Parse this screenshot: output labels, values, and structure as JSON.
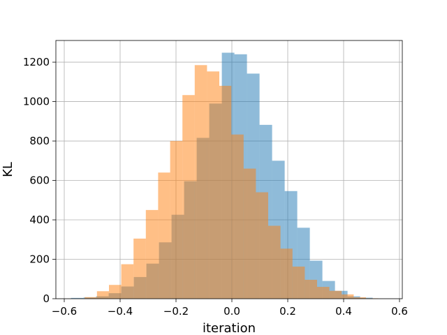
{
  "chart_data": {
    "type": "histogram",
    "title": "",
    "xlabel": "iteration",
    "ylabel": "KL",
    "xlim": [
      -0.63,
      0.61
    ],
    "ylim": [
      0,
      1310
    ],
    "xticks": [
      -0.6,
      -0.4,
      -0.2,
      0.0,
      0.2,
      0.4,
      0.6
    ],
    "xtick_labels": [
      "−0.6",
      "−0.4",
      "−0.2",
      "0.0",
      "0.2",
      "0.4",
      "0.6"
    ],
    "yticks": [
      0,
      200,
      400,
      600,
      800,
      1000,
      1200
    ],
    "ytick_labels": [
      "0",
      "200",
      "400",
      "600",
      "800",
      "1000",
      "1200"
    ],
    "grid": true,
    "legend": "none",
    "overlap_color": "#c59a70",
    "series": [
      {
        "color": "#1f77b4",
        "opacity": 0.5,
        "bins": [
          [
            -0.576,
            -0.531,
            4
          ],
          [
            -0.531,
            -0.486,
            6
          ],
          [
            -0.486,
            -0.441,
            12
          ],
          [
            -0.441,
            -0.396,
            28
          ],
          [
            -0.396,
            -0.351,
            62
          ],
          [
            -0.351,
            -0.306,
            110
          ],
          [
            -0.306,
            -0.261,
            178
          ],
          [
            -0.261,
            -0.216,
            286
          ],
          [
            -0.216,
            -0.171,
            426
          ],
          [
            -0.171,
            -0.126,
            596
          ],
          [
            -0.126,
            -0.081,
            816
          ],
          [
            -0.081,
            -0.036,
            990
          ],
          [
            -0.036,
            0.009,
            1248
          ],
          [
            0.009,
            0.054,
            1240
          ],
          [
            0.054,
            0.099,
            1142
          ],
          [
            0.099,
            0.144,
            882
          ],
          [
            0.144,
            0.189,
            700
          ],
          [
            0.189,
            0.234,
            546
          ],
          [
            0.234,
            0.279,
            360
          ],
          [
            0.279,
            0.324,
            193
          ],
          [
            0.324,
            0.369,
            90
          ],
          [
            0.369,
            0.414,
            40
          ],
          [
            0.414,
            0.459,
            12
          ],
          [
            0.459,
            0.504,
            5
          ]
        ]
      },
      {
        "color": "#ff7f0e",
        "opacity": 0.5,
        "bins": [
          [
            -0.527,
            -0.483,
            8
          ],
          [
            -0.483,
            -0.44,
            38
          ],
          [
            -0.44,
            -0.396,
            70
          ],
          [
            -0.396,
            -0.352,
            175
          ],
          [
            -0.352,
            -0.308,
            305
          ],
          [
            -0.308,
            -0.264,
            450
          ],
          [
            -0.264,
            -0.221,
            640
          ],
          [
            -0.221,
            -0.177,
            800
          ],
          [
            -0.177,
            -0.133,
            1033
          ],
          [
            -0.133,
            -0.089,
            1185
          ],
          [
            -0.089,
            -0.045,
            1153
          ],
          [
            -0.045,
            -0.002,
            1080
          ],
          [
            -0.002,
            0.042,
            833
          ],
          [
            0.042,
            0.086,
            660
          ],
          [
            0.086,
            0.13,
            540
          ],
          [
            0.13,
            0.174,
            370
          ],
          [
            0.174,
            0.217,
            254
          ],
          [
            0.217,
            0.261,
            163
          ],
          [
            0.261,
            0.305,
            96
          ],
          [
            0.305,
            0.349,
            60
          ],
          [
            0.349,
            0.393,
            40
          ],
          [
            0.393,
            0.436,
            22
          ],
          [
            0.436,
            0.48,
            7
          ],
          [
            0.48,
            0.524,
            2
          ]
        ]
      }
    ]
  }
}
